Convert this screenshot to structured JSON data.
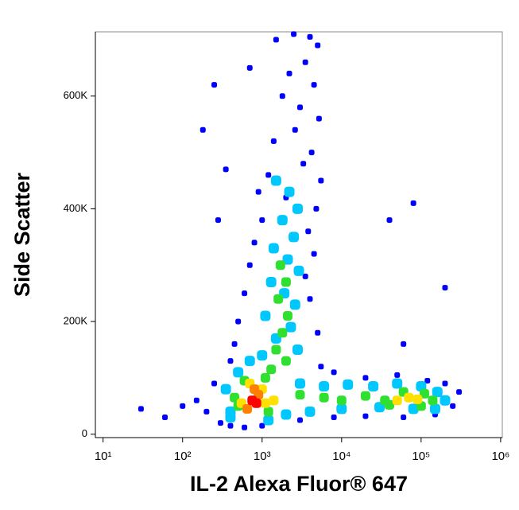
{
  "chart_data": {
    "type": "scatter",
    "x_label": "IL-2 Alexa Fluor® 647",
    "y_label": "Side Scatter",
    "xscale": "log",
    "xlim": [
      8,
      1050000
    ],
    "ylim": [
      -6000,
      714000
    ],
    "xticks": [
      {
        "value": 10,
        "label": "10¹"
      },
      {
        "value": 100,
        "label": "10²"
      },
      {
        "value": 1000,
        "label": "10³"
      },
      {
        "value": 10000,
        "label": "10⁴"
      },
      {
        "value": 100000,
        "label": "10⁵"
      },
      {
        "value": 1000000,
        "label": "10⁶"
      }
    ],
    "yticks": [
      0,
      {
        "value": 200000,
        "label": "200K"
      },
      {
        "value": 400000,
        "label": "400K"
      },
      {
        "value": 600000,
        "label": "600K"
      }
    ],
    "series": [
      {
        "color": "#0000ff",
        "x": [
          1500,
          2500,
          4000,
          5000,
          3500,
          2200,
          4500,
          1800,
          3000,
          5200,
          2600,
          1400,
          4200,
          3300,
          1200,
          5500,
          900,
          2000,
          4800,
          1000,
          3800,
          800,
          4500,
          700,
          3500,
          600,
          4000,
          500,
          5000,
          450,
          3000,
          400,
          5500,
          8000,
          20000,
          50000,
          120000,
          200000,
          300000,
          250000,
          150000,
          60000,
          20000,
          8000,
          3000,
          300,
          200,
          150,
          250,
          100,
          60,
          30,
          400,
          600,
          1000,
          250,
          180,
          350,
          80000,
          40000,
          60000,
          200000,
          280,
          700
        ],
        "values": [
          700000,
          710000,
          705000,
          690000,
          660000,
          640000,
          620000,
          600000,
          580000,
          560000,
          540000,
          520000,
          500000,
          480000,
          460000,
          450000,
          430000,
          420000,
          400000,
          380000,
          360000,
          340000,
          320000,
          300000,
          280000,
          250000,
          240000,
          200000,
          180000,
          160000,
          150000,
          130000,
          120000,
          110000,
          100000,
          105000,
          95000,
          90000,
          75000,
          50000,
          35000,
          30000,
          32000,
          30000,
          25000,
          20000,
          40000,
          60000,
          90000,
          50000,
          30000,
          45000,
          15000,
          12000,
          15000,
          620000,
          540000,
          470000,
          410000,
          380000,
          160000,
          260000,
          380000,
          650000
        ]
      },
      {
        "color": "#00c8ff",
        "x": [
          1500,
          2200,
          2800,
          1800,
          2500,
          1400,
          2100,
          2900,
          1300,
          1900,
          2600,
          1100,
          2300,
          1500,
          2800,
          1000,
          3000,
          6000,
          12000,
          25000,
          50000,
          100000,
          160000,
          200000,
          150000,
          80000,
          30000,
          10000,
          4000,
          2000,
          400,
          350,
          500,
          700,
          400,
          1200
        ],
        "values": [
          450000,
          430000,
          400000,
          380000,
          350000,
          330000,
          310000,
          290000,
          270000,
          250000,
          230000,
          210000,
          190000,
          170000,
          150000,
          140000,
          90000,
          85000,
          88000,
          85000,
          90000,
          85000,
          75000,
          60000,
          45000,
          45000,
          48000,
          45000,
          40000,
          35000,
          40000,
          80000,
          110000,
          130000,
          30000,
          25000
        ]
      },
      {
        "color": "#30e030",
        "x": [
          1700,
          2000,
          1600,
          2100,
          1800,
          1500,
          2000,
          1300,
          3000,
          6000,
          10000,
          20000,
          35000,
          60000,
          110000,
          140000,
          100000,
          40000,
          500,
          600,
          1100,
          1200,
          450
        ],
        "values": [
          300000,
          270000,
          240000,
          210000,
          180000,
          150000,
          130000,
          115000,
          70000,
          65000,
          60000,
          68000,
          60000,
          75000,
          72000,
          60000,
          50000,
          52000,
          50000,
          95000,
          100000,
          40000,
          65000
        ]
      },
      {
        "color": "#ffe000",
        "x": [
          700,
          1000,
          550,
          1100,
          70000,
          90000,
          50000,
          1400
        ],
        "values": [
          90000,
          80000,
          55000,
          55000,
          65000,
          62000,
          60000,
          60000
        ]
      },
      {
        "color": "#ff8000",
        "x": [
          900,
          650,
          800
        ],
        "values": [
          70000,
          45000,
          80000
        ]
      },
      {
        "color": "#ff0000",
        "x": [
          750,
          850
        ],
        "values": [
          60000,
          55000
        ]
      }
    ]
  }
}
